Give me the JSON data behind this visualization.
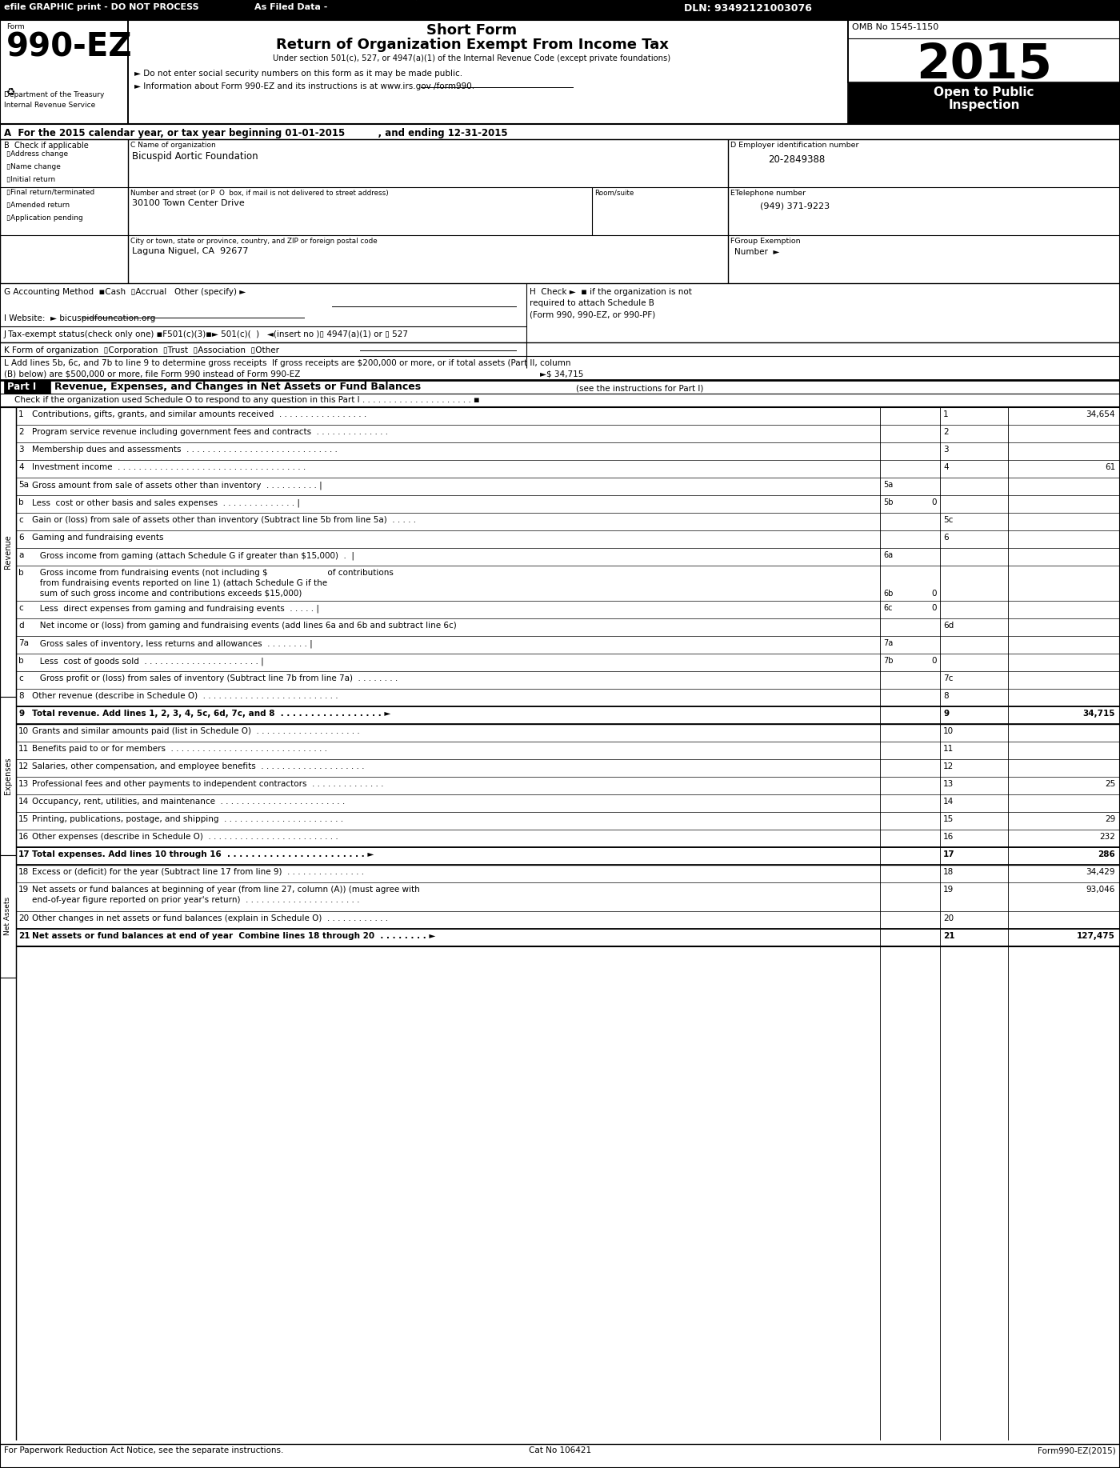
{
  "efile": "efile GRAPHIC print - DO NOT PROCESS",
  "filed": "As Filed Data -",
  "dln": "DLN: 93492121003076",
  "title1": "Short Form",
  "title2": "Return of Organization Exempt From Income Tax",
  "subtitle": "Under section 501(c), 527, or 4947(a)(1) of the Internal Revenue Code (except private foundations)",
  "omb": "OMB No 1545-1150",
  "year": "2015",
  "open_public": "Open to Public",
  "inspection": "Inspection",
  "bullet1": "► Do not enter social security numbers on this form as it may be made public.",
  "bullet2": "► Information about Form 990-EZ and its instructions is at www.irs.gov /form990.",
  "dept": "Department of the Treasury",
  "irs": "Internal Revenue Service",
  "sec_a": "A  For the 2015 calendar year, or tax year beginning 01-01-2015          , and ending 12-31-2015",
  "org": "Bicuspid Aortic Foundation",
  "ein": "20-2849388",
  "addr1_label": "Number and street (or P  O  box, if mail is not delivered to street address)",
  "room_suite": "Room/suite",
  "addr1": "30100 Town Center Drive",
  "phone_label": "ETelephone number",
  "phone": "(949) 371-9223",
  "city_label": "City or town, state or province, country, and ZIP or foreign postal code",
  "city": "Laguna Niguel, CA  92677",
  "footer_left": "For Paperwork Reduction Act Notice, see the separate instructions.",
  "footer_center": "Cat No 106421",
  "footer_right": "Form990-EZ(2015)"
}
